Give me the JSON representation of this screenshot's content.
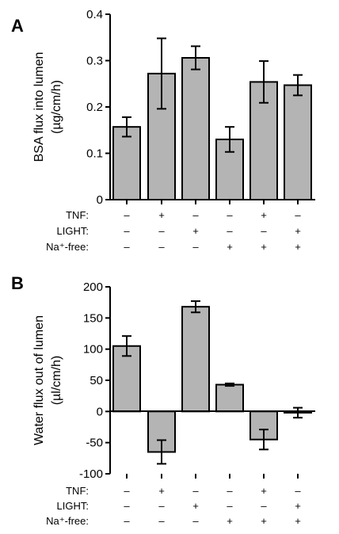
{
  "chart_data": [
    {
      "type": "bar",
      "panel": "A",
      "ylabel": "BSA flux into lumen",
      "ylabel_unit": "(µg/cm/h)",
      "ylim": [
        0,
        0.4
      ],
      "yticks": [
        0,
        0.1,
        0.2,
        0.3,
        0.4
      ],
      "ytick_labels": [
        "0",
        "0.1",
        "0.2",
        "0.3",
        "0.4"
      ],
      "values": [
        0.157,
        0.272,
        0.306,
        0.13,
        0.254,
        0.247
      ],
      "errors": [
        0.021,
        0.076,
        0.025,
        0.027,
        0.045,
        0.022
      ],
      "conditions": [
        {
          "label": "TNF:",
          "signs": [
            "–",
            "+",
            "–",
            "–",
            "+",
            "–"
          ]
        },
        {
          "label": "LIGHT:",
          "signs": [
            "–",
            "–",
            "+",
            "–",
            "–",
            "+"
          ]
        },
        {
          "label": "Na⁺-free:",
          "signs": [
            "–",
            "–",
            "–",
            "+",
            "+",
            "+"
          ]
        }
      ],
      "bar_color": "#b4b4b4"
    },
    {
      "type": "bar",
      "panel": "B",
      "ylabel": "Water flux out of lumen",
      "ylabel_unit": "(µl/cm/h)",
      "ylim": [
        -100,
        200
      ],
      "yticks": [
        -100,
        -50,
        0,
        50,
        100,
        150,
        200
      ],
      "ytick_labels": [
        "-100",
        "-50",
        "0",
        "50",
        "100",
        "150",
        "200"
      ],
      "values": [
        105,
        -65,
        168,
        43,
        -45,
        -2
      ],
      "errors": [
        16,
        19,
        9,
        2,
        16,
        8
      ],
      "conditions": [
        {
          "label": "TNF:",
          "signs": [
            "–",
            "+",
            "–",
            "–",
            "+",
            "–"
          ]
        },
        {
          "label": "LIGHT:",
          "signs": [
            "–",
            "–",
            "+",
            "–",
            "–",
            "+"
          ]
        },
        {
          "label": "Na⁺-free:",
          "signs": [
            "–",
            "–",
            "–",
            "+",
            "+",
            "+"
          ]
        }
      ],
      "bar_color": "#b4b4b4"
    }
  ]
}
